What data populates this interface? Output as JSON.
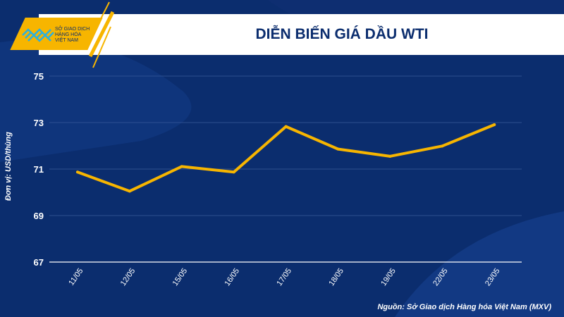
{
  "logo": {
    "line1": "SỞ GIAO DỊCH",
    "line2": "HÀNG HÓA",
    "line3": "VIỆT NAM"
  },
  "source": "Nguồn: Sở Giao dịch Hàng hóa Việt Nam (MXV)",
  "colors": {
    "background": "#0b2d6e",
    "line": "#f7b500",
    "accent": "#f7b500"
  },
  "chart_data": {
    "type": "line",
    "title": "DIỄN BIẾN GIÁ DẦU WTI",
    "xlabel": "",
    "ylabel": "Đơn vị: USD/thùng",
    "categories": [
      "11/05",
      "12/05",
      "15/05",
      "16/05",
      "17/05",
      "18/05",
      "19/05",
      "22/05",
      "23/05"
    ],
    "series": [
      {
        "name": "WTI",
        "values": [
          70.87,
          70.05,
          71.11,
          70.87,
          72.83,
          71.86,
          71.55,
          71.99,
          72.91
        ]
      }
    ],
    "ylim": [
      67,
      75
    ],
    "yticks": [
      67,
      69,
      71,
      73,
      75
    ],
    "grid": true
  }
}
